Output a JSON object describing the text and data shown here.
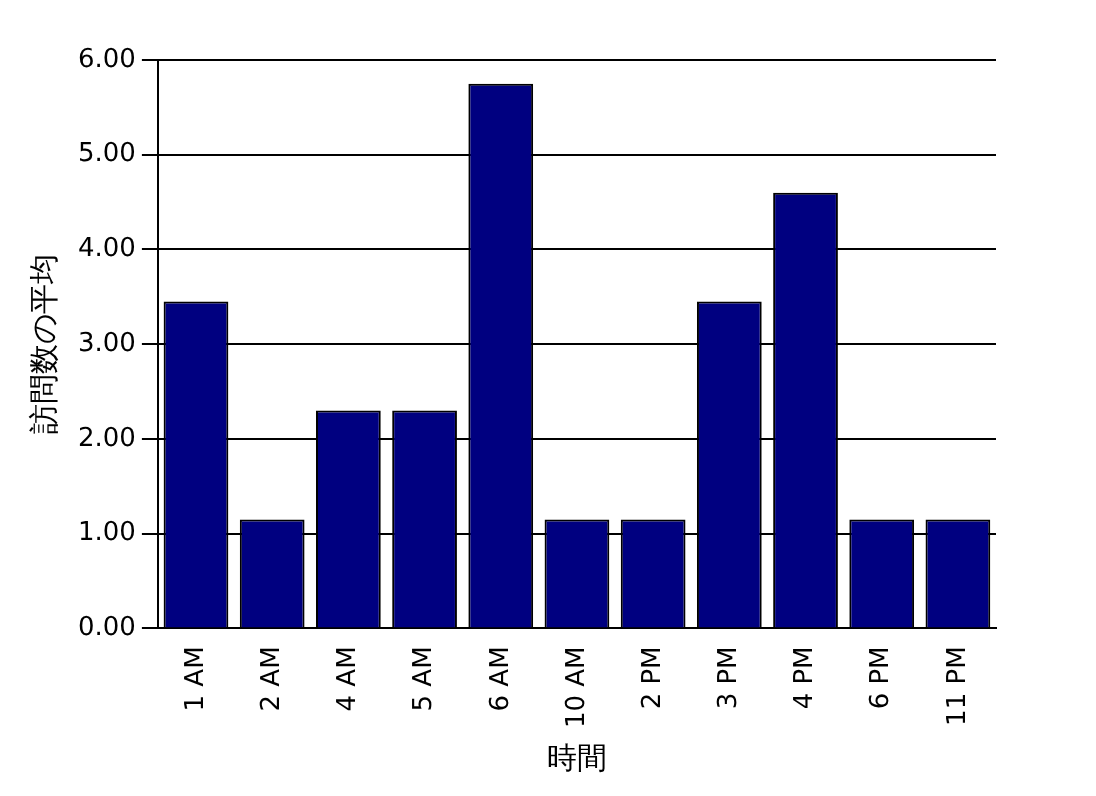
{
  "chart_data": {
    "type": "bar",
    "xlabel": "時間",
    "ylabel": "訪問数の平均",
    "categories": [
      "1 AM",
      "2 AM",
      "4 AM",
      "5 AM",
      "6 AM",
      "10 AM",
      "2 PM",
      "3 PM",
      "4 PM",
      "6 PM",
      "11 PM"
    ],
    "values": [
      3.45,
      1.15,
      2.3,
      2.3,
      5.75,
      1.15,
      1.15,
      3.45,
      4.6,
      1.15,
      1.15
    ],
    "color": "#000080",
    "ylim": [
      0,
      6
    ],
    "yticks": [
      {
        "value": 0,
        "label": "0.00"
      },
      {
        "value": 1,
        "label": "1.00"
      },
      {
        "value": 2,
        "label": "2.00"
      },
      {
        "value": 3,
        "label": "3.00"
      },
      {
        "value": 4,
        "label": "4.00"
      },
      {
        "value": 5,
        "label": "5.00"
      },
      {
        "value": 6,
        "label": "6.00"
      }
    ],
    "grid": "y",
    "legend": false
  }
}
